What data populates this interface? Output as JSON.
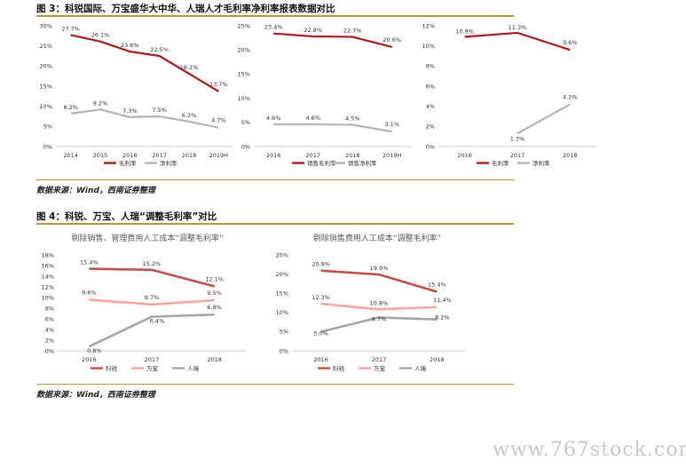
{
  "figure3": {
    "title": "图 3：科锐国际、万宝盛华大中华、人瑞人才毛利率净利率报表数据对比",
    "source": "数据来源：Wind，西南证券整理"
  },
  "figure4": {
    "title": "图 4：科锐、万宝、人瑞“调整毛利率”对比",
    "source": "数据来源：Wind，西南证券整理"
  },
  "watermark": "www.767stock.com",
  "chart_data": [
    {
      "id": "c1",
      "type": "line",
      "categories": [
        "2014",
        "2015",
        "2016",
        "2017",
        "2018",
        "2019H"
      ],
      "ylim": [
        0,
        30
      ],
      "yticks": [
        0,
        5,
        10,
        15,
        20,
        25,
        30
      ],
      "tick_suffix": "%",
      "series": [
        {
          "name": "毛利率",
          "color": "#a51c23",
          "values": [
            27.7,
            26.1,
            23.6,
            22.5,
            18.1,
            13.7
          ],
          "labels": [
            "27.7%",
            "26.1%",
            "23.6%",
            "22.5%",
            "18.1%",
            "13.7%"
          ]
        },
        {
          "name": "净利率",
          "color": "#b4b4b4",
          "values": [
            8.2,
            9.2,
            7.3,
            7.5,
            6.2,
            4.7
          ],
          "labels": [
            "8.2%",
            "9.2%",
            "7.3%",
            "7.5%",
            "6.2%",
            "4.7%"
          ]
        }
      ]
    },
    {
      "id": "c2",
      "type": "line",
      "categories": [
        "2016",
        "2017",
        "2018",
        "2019H"
      ],
      "ylim": [
        0,
        25
      ],
      "yticks": [
        0,
        5,
        10,
        15,
        20,
        25
      ],
      "tick_suffix": "%",
      "series": [
        {
          "name": "销售毛利率",
          "color": "#a51c23",
          "values": [
            23.4,
            22.8,
            22.7,
            20.6
          ],
          "labels": [
            "23.4%",
            "22.8%",
            "22.7%",
            "20.6%"
          ]
        },
        {
          "name": "销售净利率",
          "color": "#b4b4b4",
          "values": [
            4.6,
            4.6,
            4.5,
            3.1
          ],
          "labels": [
            "4.6%",
            "4.6%",
            "4.5%",
            "3.1%"
          ]
        }
      ]
    },
    {
      "id": "c3",
      "type": "line",
      "categories": [
        "2016",
        "2017",
        "2018"
      ],
      "ylim": [
        0,
        12
      ],
      "yticks": [
        0,
        2,
        4,
        6,
        8,
        10,
        12
      ],
      "tick_suffix": "%",
      "series": [
        {
          "name": "毛利率",
          "color": "#a51c23",
          "values": [
            10.9,
            11.3,
            9.6
          ],
          "labels": [
            "10.9%",
            "11.3%",
            "9.6%"
          ]
        },
        {
          "name": "净利率",
          "color": "#b4b4b4",
          "values": [
            null,
            1.3,
            4.2
          ],
          "labels": [
            "",
            "1.3%",
            "4.2%"
          ]
        }
      ]
    },
    {
      "id": "c4",
      "type": "line",
      "title": "剔除销售、管理费用人工成本“调整毛利率”",
      "categories": [
        "2016",
        "2017",
        "2018"
      ],
      "ylim": [
        0,
        18
      ],
      "yticks": [
        0,
        2,
        4,
        6,
        8,
        10,
        12,
        14,
        16,
        18
      ],
      "tick_suffix": "%",
      "series": [
        {
          "name": "科锐",
          "color": "#c0504d",
          "values": [
            15.4,
            15.2,
            12.1
          ],
          "labels": [
            "15.4%",
            "15.2%",
            "12.1%"
          ]
        },
        {
          "name": "万宝",
          "color": "#f4a6a6",
          "values": [
            9.6,
            8.7,
            9.5
          ],
          "labels": [
            "9.6%",
            "8.7%",
            "9.5%"
          ]
        },
        {
          "name": "人瑞",
          "color": "#a6a6a6",
          "values": [
            0.8,
            6.4,
            6.8
          ],
          "labels": [
            "0.8%",
            "6.4%",
            "6.8%"
          ]
        }
      ]
    },
    {
      "id": "c5",
      "type": "line",
      "title": "剔除销售费用人工成本“调整毛利率”",
      "categories": [
        "2016",
        "2017",
        "2018"
      ],
      "ylim": [
        0,
        25
      ],
      "yticks": [
        0,
        5,
        10,
        15,
        20,
        25
      ],
      "tick_suffix": "%",
      "series": [
        {
          "name": "科锐",
          "color": "#c0504d",
          "values": [
            20.9,
            19.9,
            15.4
          ],
          "labels": [
            "20.9%",
            "19.9%",
            "15.4%"
          ]
        },
        {
          "name": "万宝",
          "color": "#f4a6a6",
          "values": [
            12.3,
            10.8,
            11.4
          ],
          "labels": [
            "12.3%",
            "10.8%",
            "11.4%"
          ]
        },
        {
          "name": "人瑞",
          "color": "#a6a6a6",
          "values": [
            5.0,
            8.7,
            8.2
          ],
          "labels": [
            "5.0%",
            "8.7%",
            "8.2%"
          ]
        }
      ]
    }
  ]
}
